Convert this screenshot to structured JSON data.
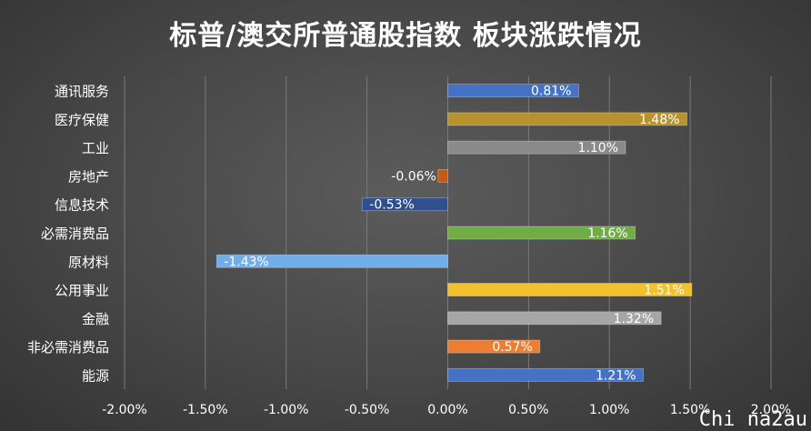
{
  "chart_data": {
    "type": "bar",
    "orientation": "horizontal",
    "title": "标普/澳交所普通股指数 板块涨跌情况",
    "categories": [
      "通讯服务",
      "医疗保健",
      "工业",
      "房地产",
      "信息技术",
      "必需消费品",
      "原材料",
      "公用事业",
      "金融",
      "非必需消费品",
      "能源"
    ],
    "values": [
      0.81,
      1.48,
      1.1,
      -0.06,
      -0.53,
      1.16,
      -1.43,
      1.51,
      1.32,
      0.57,
      1.21
    ],
    "data_labels": [
      "0.81%",
      "1.48%",
      "1.10%",
      "-0.06%",
      "-0.53%",
      "1.16%",
      "-1.43%",
      "1.51%",
      "1.32%",
      "0.57%",
      "1.21%"
    ],
    "bar_colors": [
      "#4472C4",
      "#B8922C",
      "#8A8A8A",
      "#C55A11",
      "#2F4F8F",
      "#70AD47",
      "#6FAEEA",
      "#F2C12E",
      "#A6A6A6",
      "#ED7D31",
      "#4472C4"
    ],
    "xlim": [
      -2.0,
      2.0
    ],
    "x_ticks": [
      -2.0,
      -1.5,
      -1.0,
      -0.5,
      0.0,
      0.5,
      1.0,
      1.5,
      2.0
    ],
    "x_tick_labels": [
      "-2.00%",
      "-1.50%",
      "-1.00%",
      "-0.50%",
      "0.00%",
      "0.50%",
      "1.00%",
      "1.50%",
      "2.00%"
    ],
    "grid": true,
    "xlabel": "",
    "ylabel": ""
  },
  "watermark": "Chi na2au"
}
